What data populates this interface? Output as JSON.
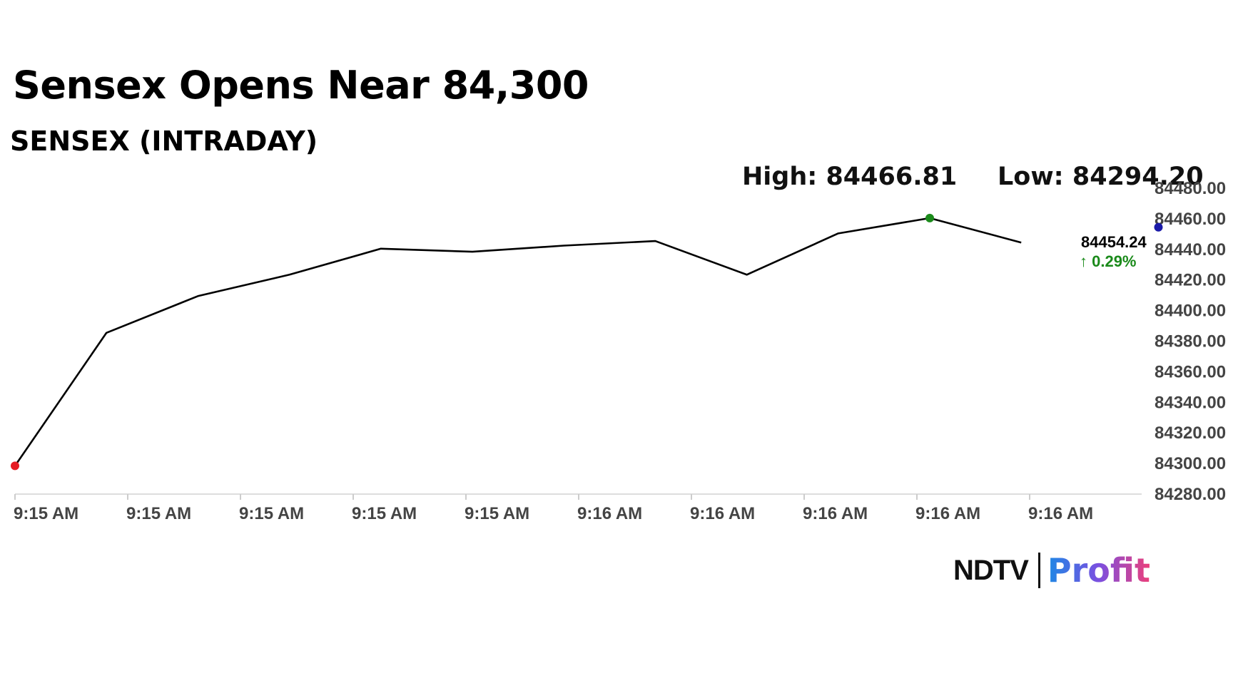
{
  "headline": "Sensex Opens Near 84,300",
  "subtitle": "SENSEX (INTRADAY)",
  "stats": {
    "high": "High: 84466.81",
    "low": "Low: 84294.20"
  },
  "last_value": {
    "value": "84454.24",
    "change": "0.29%",
    "arrow": "↑"
  },
  "logo": {
    "ndtv": "NDTV",
    "profit": "Profit"
  },
  "colors": {
    "line": "#000000",
    "start_marker": "#e51c23",
    "high_marker": "#1a8a1a",
    "end_marker": "#1a1aa8",
    "change_positive": "#1a8a1a",
    "axis_text": "#444444"
  },
  "chart_data": {
    "type": "line",
    "title": "SENSEX (INTRADAY)",
    "x": [
      0,
      1,
      2,
      3,
      4,
      5,
      6,
      7,
      8,
      9,
      10,
      11
    ],
    "y": [
      84298,
      84385,
      84409,
      84423,
      84440,
      84438,
      84442,
      84445,
      84423,
      84450,
      84460,
      84444
    ],
    "x_tick_labels": [
      "9:15 AM",
      "9:15 AM",
      "9:15 AM",
      "9:15 AM",
      "9:15 AM",
      "9:16 AM",
      "9:16 AM",
      "9:16 AM",
      "9:16 AM",
      "9:16 AM"
    ],
    "y_ticks": [
      "84280.00",
      "84300.00",
      "84320.00",
      "84340.00",
      "84360.00",
      "84380.00",
      "84400.00",
      "84420.00",
      "84440.00",
      "84460.00",
      "84480.00"
    ],
    "ylim": [
      84280,
      84480
    ],
    "y_axis_side": "right",
    "grid": false,
    "markers": [
      {
        "name": "start",
        "x": 0,
        "y": 84298
      },
      {
        "name": "high",
        "x": 10,
        "y": 84460
      },
      {
        "name": "end",
        "x": 12.5,
        "y": 84454
      }
    ]
  }
}
